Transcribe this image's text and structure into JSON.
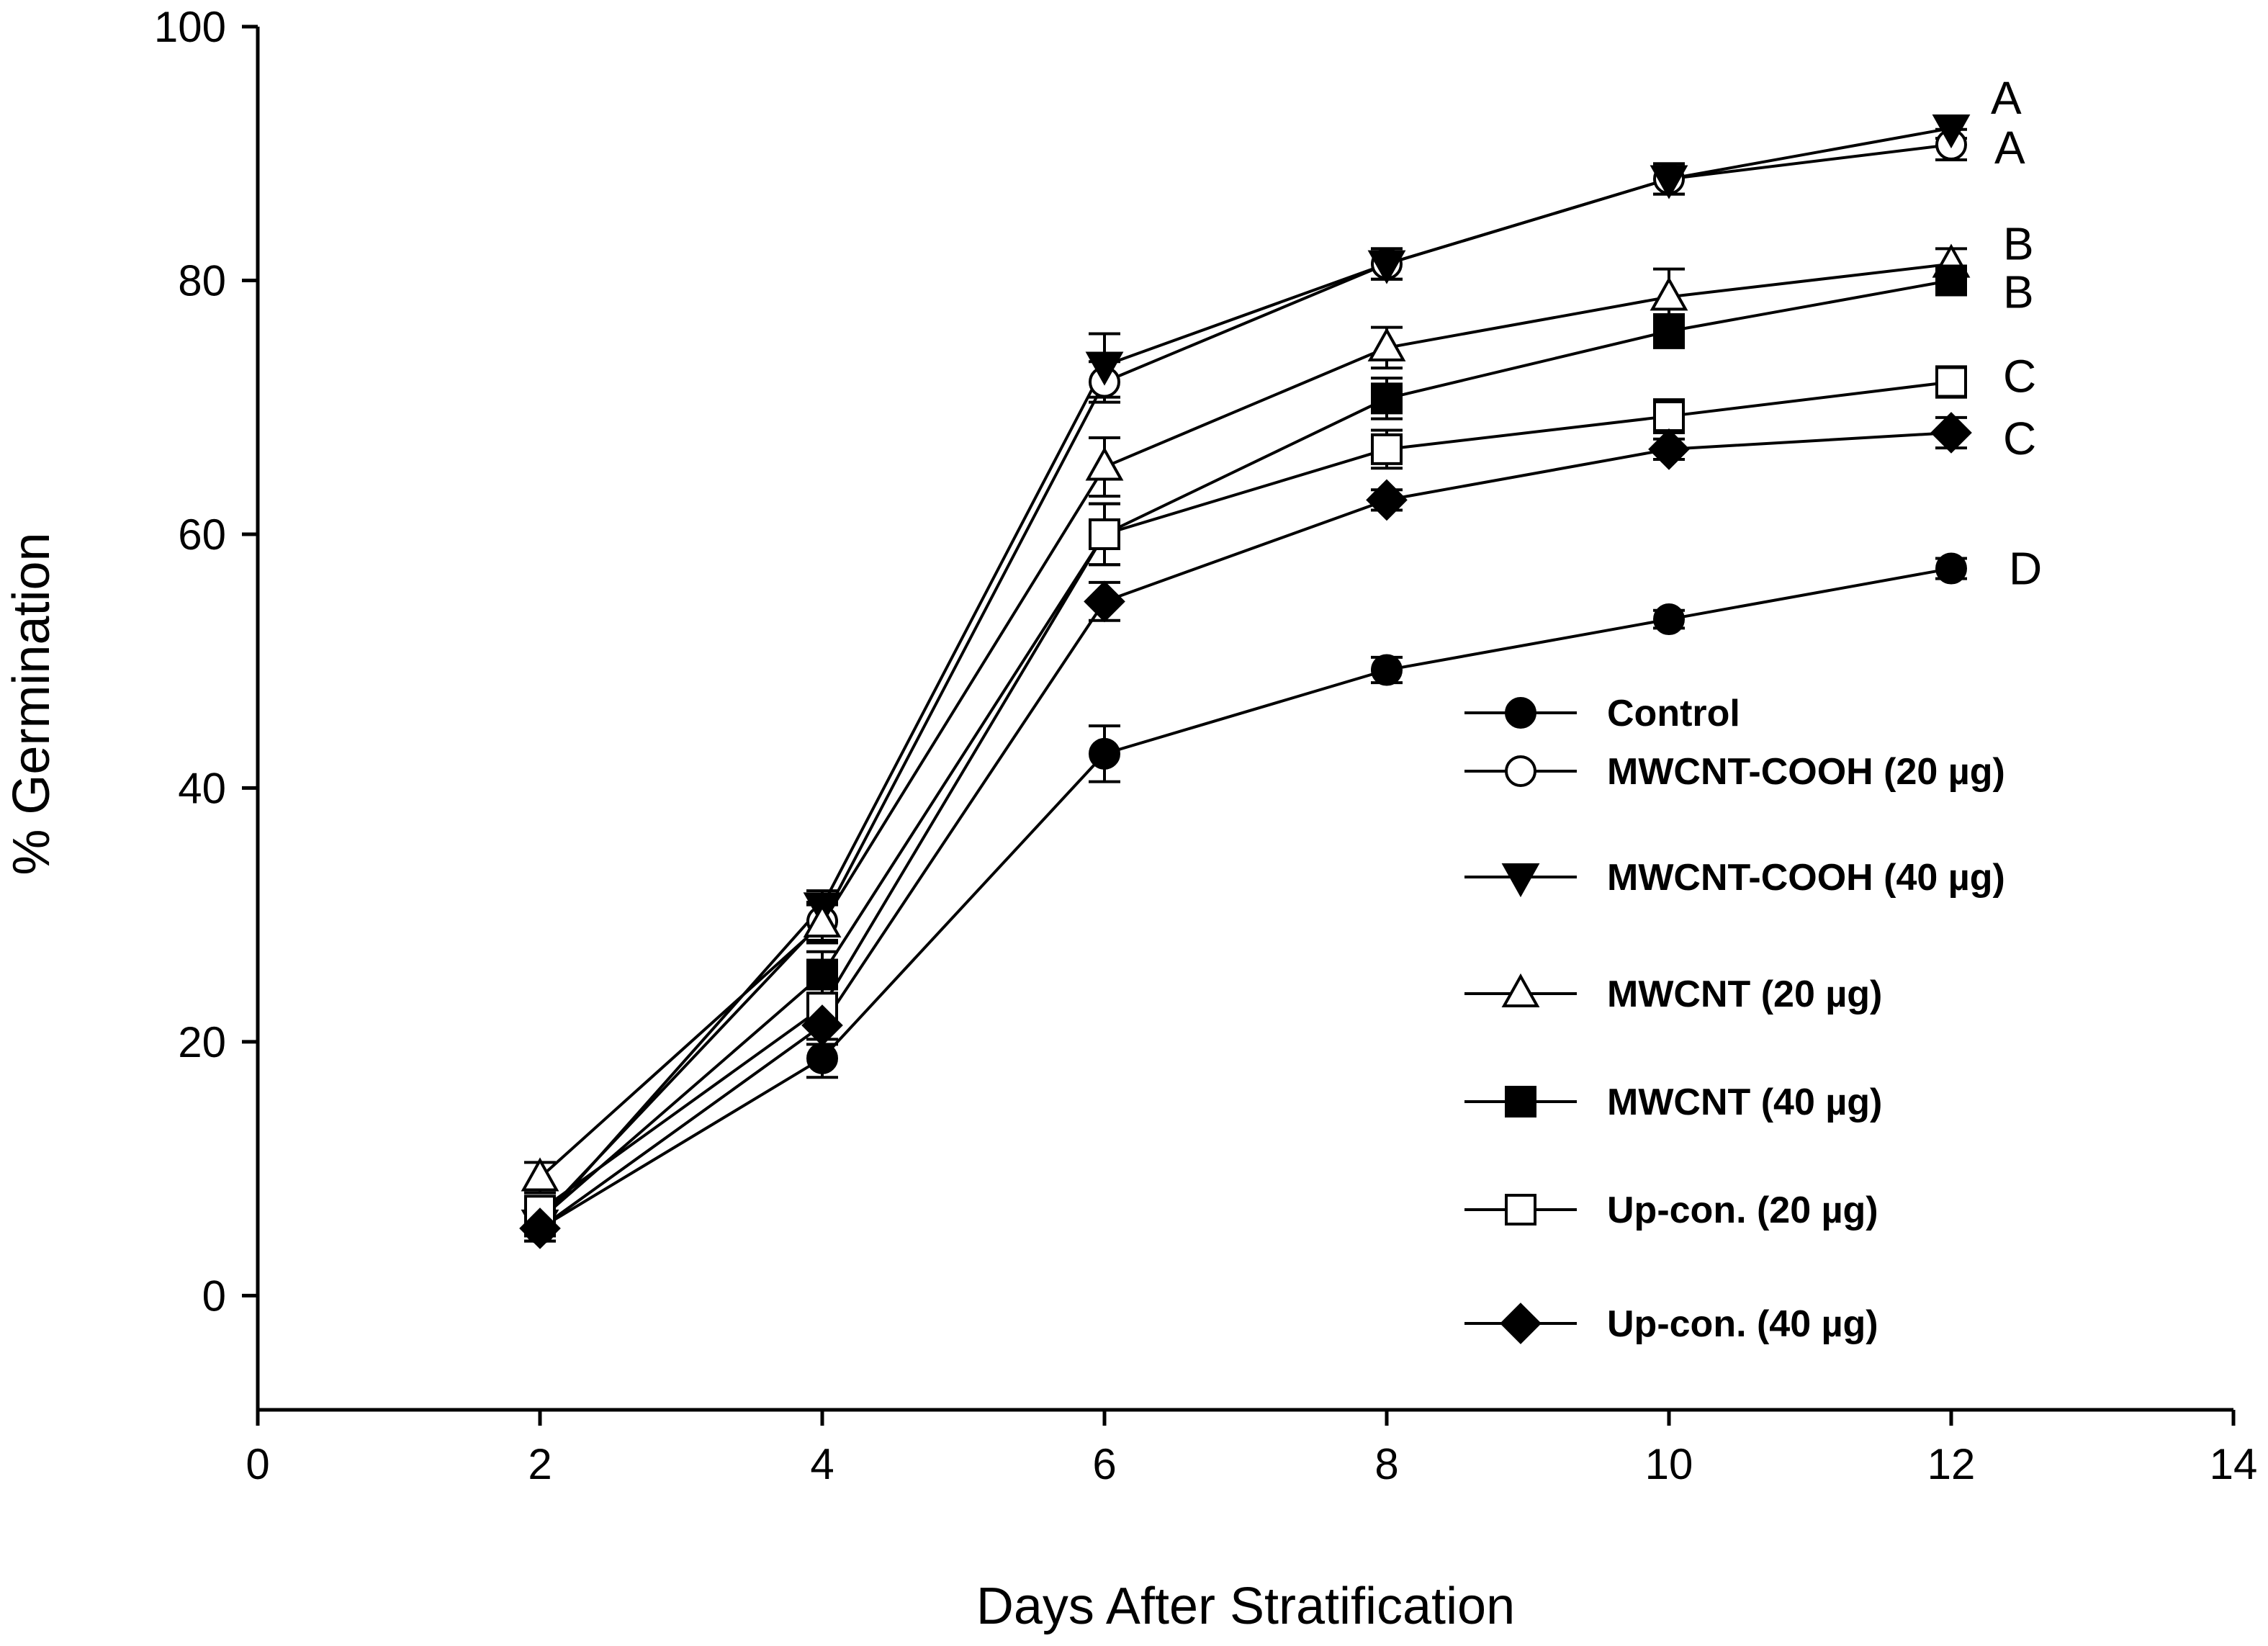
{
  "chart_data": {
    "type": "line",
    "title": "",
    "xlabel": "Days After Stratification",
    "ylabel": "% Germination",
    "xlim": [
      0,
      14
    ],
    "ylim": [
      -9,
      100
    ],
    "xticks": [
      0,
      2,
      4,
      6,
      8,
      10,
      12,
      14
    ],
    "yticks": [
      0,
      20,
      40,
      60,
      80,
      100
    ],
    "grid": false,
    "legend_position": "center-right",
    "x": [
      2,
      4,
      6,
      8,
      10,
      12
    ],
    "series": [
      {
        "name": "Control",
        "marker": "circle-filled",
        "values": [
          5.3,
          18.7,
          42.7,
          49.3,
          53.3,
          57.3
        ],
        "errors": [
          1.0,
          1.5,
          2.2,
          1.0,
          0.7,
          0.8
        ],
        "letter": "D"
      },
      {
        "name": "MWCNT-COOH (20 µg)",
        "marker": "circle-open",
        "values": [
          6.0,
          29.5,
          72.0,
          81.3,
          88.0,
          90.7
        ],
        "errors": [
          1.0,
          1.5,
          1.6,
          1.2,
          1.2,
          1.2
        ],
        "letter": "A"
      },
      {
        "name": "MWCNT-COOH (40 µg)",
        "marker": "triangle-down-filled",
        "values": [
          5.7,
          30.7,
          73.3,
          81.3,
          88.0,
          92.0
        ],
        "errors": [
          1.0,
          1.2,
          2.5,
          1.2,
          1.2,
          0.8
        ],
        "letter": "A"
      },
      {
        "name": "MWCNT (20 µg)",
        "marker": "triangle-up-open",
        "values": [
          9.3,
          29.3,
          65.3,
          74.7,
          78.7,
          81.3
        ],
        "errors": [
          1.2,
          1.5,
          2.3,
          1.6,
          2.2,
          1.2
        ],
        "letter": "B"
      },
      {
        "name": "MWCNT (40 µg)",
        "marker": "square-filled",
        "values": [
          6.0,
          25.3,
          60.0,
          70.7,
          76.0,
          80.0
        ],
        "errors": [
          1.0,
          1.8,
          2.4,
          1.6,
          1.3,
          0.8
        ],
        "letter": "B"
      },
      {
        "name": "Up-con. (20 µg)",
        "marker": "square-open",
        "values": [
          6.7,
          22.7,
          60.0,
          66.7,
          69.3,
          72.0
        ],
        "errors": [
          1.0,
          1.5,
          2.4,
          1.5,
          1.3,
          1.2
        ],
        "letter": "C"
      },
      {
        "name": "Up-con. (40 µg)",
        "marker": "diamond-filled",
        "values": [
          5.3,
          21.3,
          54.7,
          62.7,
          66.7,
          68.0
        ],
        "errors": [
          1.0,
          1.5,
          1.5,
          0.8,
          0.8,
          1.2
        ],
        "letter": "C"
      }
    ]
  }
}
